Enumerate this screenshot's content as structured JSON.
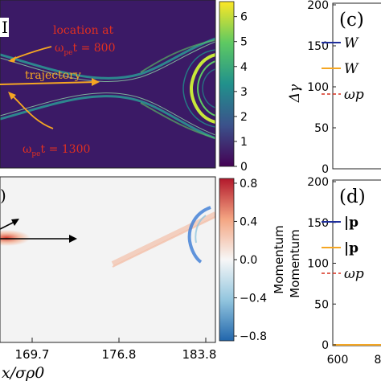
{
  "panel_labels": {
    "c": "(c)",
    "d": "(d)",
    "partial_top_left": "I",
    "partial_bottom_left": ")"
  },
  "top_left": {
    "annotation_location": "location at",
    "annotation_time_800": "ωpet = 800",
    "annotation_trajectory": "trajectory",
    "annotation_time_1300": "ωpet = 1300",
    "colorbar_ticks": [
      "6",
      "5",
      "4",
      "3",
      "2",
      "1",
      "0"
    ],
    "colors": {
      "background": "#3b1a66",
      "filament": "#4fb8ad",
      "filament_bright": "#c8e83a",
      "annotation": "#e03020",
      "trajectory": "#f5a623"
    }
  },
  "bottom_left": {
    "colorbar_label": "Momentum",
    "colorbar_ticks": [
      "0.8",
      "0.4",
      "0.0",
      "−0.4",
      "−0.8"
    ],
    "x_tick_labels": [
      "169.7",
      "176.8",
      "183.8"
    ],
    "x_axis_label": "x/σρ0",
    "colors": {
      "positive": "#d7301f",
      "negative": "#3a7bd5",
      "neutral": "#f2f2f2"
    }
  },
  "chart_data": [
    {
      "type": "line",
      "panel": "c",
      "ylabel": "Δγ",
      "yticks": [
        "200",
        "150",
        "100",
        "50",
        "0"
      ],
      "ylim": [
        0,
        200
      ],
      "legend": [
        {
          "name": "W",
          "color": "#1f2f9c",
          "style": "solid"
        },
        {
          "name": "W",
          "color": "#f5a623",
          "style": "solid"
        },
        {
          "name": "ωp",
          "color": "#d7301f",
          "style": "dashed"
        }
      ]
    },
    {
      "type": "line",
      "panel": "d",
      "ylabel": "Momentum",
      "yticks": [
        "200",
        "150",
        "100",
        "50",
        "0"
      ],
      "xticks": [
        "600",
        "8"
      ],
      "ylim": [
        0,
        200
      ],
      "legend": [
        {
          "name": "|p",
          "color": "#1f2f9c",
          "style": "solid"
        },
        {
          "name": "|p",
          "color": "#f5a623",
          "style": "solid"
        },
        {
          "name": "ωp",
          "color": "#d7301f",
          "style": "dashed"
        }
      ]
    }
  ]
}
